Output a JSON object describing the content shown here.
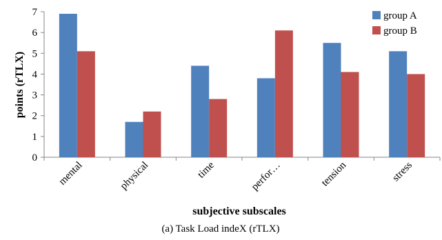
{
  "chart_data": {
    "type": "bar",
    "title": "",
    "xlabel": "subjective subscales",
    "ylabel": "points (rTLX)",
    "ylim": [
      0,
      7
    ],
    "yticks": [
      "0",
      "1",
      "2",
      "3",
      "4",
      "5",
      "6",
      "7"
    ],
    "categories": [
      "mental",
      "physical",
      "time",
      "perfor…",
      "tension",
      "stress"
    ],
    "series": [
      {
        "name": "group A",
        "color": "#4F81BD",
        "values": [
          6.9,
          1.7,
          4.4,
          3.8,
          5.5,
          5.1
        ]
      },
      {
        "name": "group B",
        "color": "#C0504D",
        "values": [
          5.1,
          2.2,
          2.8,
          6.1,
          4.1,
          4.0
        ]
      }
    ],
    "grid": false,
    "legend_position": "top-right",
    "caption": "(a) Task Load indeX (rTLX)"
  }
}
